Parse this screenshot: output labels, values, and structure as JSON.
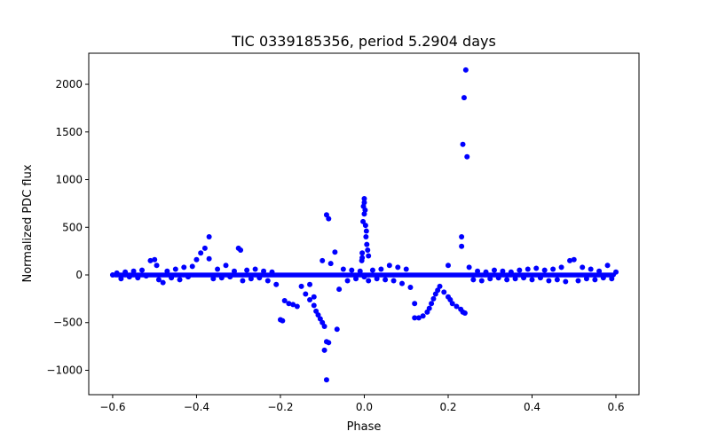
{
  "chart_data": {
    "type": "scatter",
    "title": "TIC 0339185356, period 5.2904 days",
    "xlabel": "Phase",
    "ylabel": "Normalized PDC flux",
    "xlim": [
      -0.657,
      0.655
    ],
    "ylim": [
      -1256,
      2326
    ],
    "grid": false,
    "xticks": [
      -0.6,
      -0.4,
      -0.2,
      0.0,
      0.2,
      0.4,
      0.6
    ],
    "xtick_labels": [
      "−0.6",
      "−0.4",
      "−0.2",
      "0.0",
      "0.2",
      "0.4",
      "0.6"
    ],
    "yticks": [
      -1000,
      -500,
      0,
      500,
      1000,
      1500,
      2000
    ],
    "ytick_labels": [
      "−1000",
      "−500",
      "0",
      "500",
      "1000",
      "1500",
      "2000"
    ],
    "marker_color": "#0000ff",
    "points": [
      [
        -0.6,
        0
      ],
      [
        -0.59,
        20
      ],
      [
        -0.58,
        -40
      ],
      [
        -0.57,
        30
      ],
      [
        -0.56,
        -20
      ],
      [
        -0.55,
        40
      ],
      [
        -0.54,
        -30
      ],
      [
        -0.53,
        50
      ],
      [
        -0.52,
        -10
      ],
      [
        -0.51,
        150
      ],
      [
        -0.5,
        160
      ],
      [
        -0.495,
        100
      ],
      [
        -0.49,
        -50
      ],
      [
        -0.48,
        -80
      ],
      [
        -0.47,
        40
      ],
      [
        -0.46,
        -30
      ],
      [
        -0.45,
        60
      ],
      [
        -0.44,
        -50
      ],
      [
        -0.43,
        80
      ],
      [
        -0.42,
        -20
      ],
      [
        -0.41,
        90
      ],
      [
        -0.4,
        160
      ],
      [
        -0.39,
        230
      ],
      [
        -0.38,
        280
      ],
      [
        -0.37,
        400
      ],
      [
        -0.37,
        170
      ],
      [
        -0.36,
        -40
      ],
      [
        -0.35,
        60
      ],
      [
        -0.34,
        -30
      ],
      [
        -0.33,
        100
      ],
      [
        -0.32,
        -20
      ],
      [
        -0.31,
        40
      ],
      [
        -0.3,
        280
      ],
      [
        -0.295,
        260
      ],
      [
        -0.29,
        -60
      ],
      [
        -0.28,
        50
      ],
      [
        -0.27,
        -40
      ],
      [
        -0.26,
        60
      ],
      [
        -0.25,
        -30
      ],
      [
        -0.24,
        40
      ],
      [
        -0.23,
        -60
      ],
      [
        -0.22,
        30
      ],
      [
        -0.21,
        -100
      ],
      [
        -0.2,
        -470
      ],
      [
        -0.195,
        -480
      ],
      [
        -0.19,
        -270
      ],
      [
        -0.18,
        -300
      ],
      [
        -0.17,
        -310
      ],
      [
        -0.16,
        -330
      ],
      [
        -0.15,
        -120
      ],
      [
        -0.14,
        -200
      ],
      [
        -0.13,
        -260
      ],
      [
        -0.13,
        -100
      ],
      [
        -0.12,
        -320
      ],
      [
        -0.12,
        -230
      ],
      [
        -0.115,
        -380
      ],
      [
        -0.11,
        -420
      ],
      [
        -0.105,
        -460
      ],
      [
        -0.1,
        -500
      ],
      [
        -0.095,
        -540
      ],
      [
        -0.095,
        -790
      ],
      [
        -0.09,
        -700
      ],
      [
        -0.085,
        -710
      ],
      [
        -0.09,
        -1100
      ],
      [
        -0.065,
        -570
      ],
      [
        -0.06,
        -150
      ],
      [
        -0.09,
        630
      ],
      [
        -0.085,
        590
      ],
      [
        -0.07,
        240
      ],
      [
        -0.1,
        150
      ],
      [
        -0.08,
        120
      ],
      [
        -0.05,
        60
      ],
      [
        -0.04,
        -60
      ],
      [
        -0.03,
        50
      ],
      [
        -0.02,
        -40
      ],
      [
        -0.01,
        40
      ],
      [
        0.0,
        800
      ],
      [
        0.0,
        760
      ],
      [
        -0.002,
        720
      ],
      [
        0.002,
        680
      ],
      [
        0.0,
        640
      ],
      [
        -0.003,
        560
      ],
      [
        0.003,
        520
      ],
      [
        0.005,
        460
      ],
      [
        0.004,
        400
      ],
      [
        0.006,
        320
      ],
      [
        0.008,
        260
      ],
      [
        0.01,
        200
      ],
      [
        -0.005,
        230
      ],
      [
        -0.005,
        180
      ],
      [
        -0.006,
        150
      ],
      [
        0.0,
        -20
      ],
      [
        0.01,
        -60
      ],
      [
        0.02,
        50
      ],
      [
        0.03,
        -40
      ],
      [
        0.04,
        60
      ],
      [
        0.05,
        -50
      ],
      [
        0.06,
        100
      ],
      [
        0.07,
        -60
      ],
      [
        0.08,
        80
      ],
      [
        0.09,
        -90
      ],
      [
        0.1,
        60
      ],
      [
        0.11,
        -130
      ],
      [
        0.12,
        -300
      ],
      [
        0.12,
        -450
      ],
      [
        0.13,
        -450
      ],
      [
        0.14,
        -430
      ],
      [
        0.15,
        -390
      ],
      [
        0.155,
        -350
      ],
      [
        0.16,
        -300
      ],
      [
        0.165,
        -250
      ],
      [
        0.17,
        -200
      ],
      [
        0.175,
        -160
      ],
      [
        0.18,
        -120
      ],
      [
        0.19,
        -180
      ],
      [
        0.2,
        -230
      ],
      [
        0.205,
        -260
      ],
      [
        0.21,
        -300
      ],
      [
        0.22,
        -330
      ],
      [
        0.23,
        -360
      ],
      [
        0.235,
        -390
      ],
      [
        0.24,
        -400
      ],
      [
        0.242,
        2150
      ],
      [
        0.238,
        1860
      ],
      [
        0.235,
        1370
      ],
      [
        0.245,
        1240
      ],
      [
        0.232,
        400
      ],
      [
        0.232,
        300
      ],
      [
        0.2,
        100
      ],
      [
        0.25,
        80
      ],
      [
        0.26,
        -50
      ],
      [
        0.27,
        40
      ],
      [
        0.28,
        -60
      ],
      [
        0.29,
        30
      ],
      [
        0.3,
        -40
      ],
      [
        0.31,
        50
      ],
      [
        0.32,
        -30
      ],
      [
        0.33,
        40
      ],
      [
        0.34,
        -50
      ],
      [
        0.35,
        30
      ],
      [
        0.36,
        -40
      ],
      [
        0.37,
        50
      ],
      [
        0.38,
        -30
      ],
      [
        0.39,
        60
      ],
      [
        0.4,
        -50
      ],
      [
        0.41,
        70
      ],
      [
        0.42,
        -30
      ],
      [
        0.43,
        50
      ],
      [
        0.44,
        -60
      ],
      [
        0.45,
        60
      ],
      [
        0.46,
        -50
      ],
      [
        0.47,
        80
      ],
      [
        0.48,
        -70
      ],
      [
        0.49,
        150
      ],
      [
        0.5,
        160
      ],
      [
        0.51,
        -60
      ],
      [
        0.52,
        80
      ],
      [
        0.53,
        -40
      ],
      [
        0.54,
        60
      ],
      [
        0.55,
        -50
      ],
      [
        0.56,
        40
      ],
      [
        0.57,
        -30
      ],
      [
        0.58,
        100
      ],
      [
        0.59,
        -40
      ],
      [
        0.6,
        30
      ]
    ]
  }
}
